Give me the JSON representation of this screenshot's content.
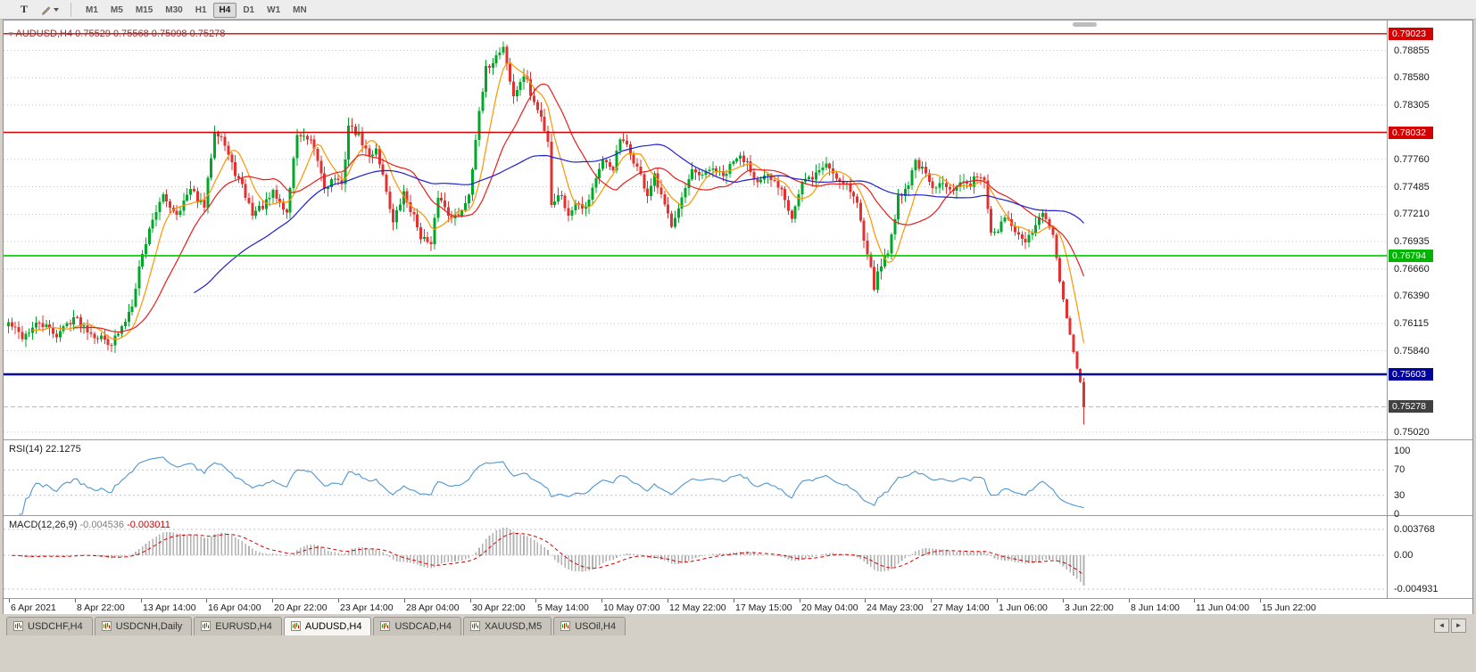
{
  "toolbar": {
    "text_tool_label": "T",
    "timeframes": [
      "M1",
      "M5",
      "M15",
      "M30",
      "H1",
      "H4",
      "D1",
      "W1",
      "MN"
    ],
    "active_timeframe": "H4"
  },
  "chart": {
    "header_marker": "▾",
    "symbol_header": "AUDUSD,H4 0.75529 0.75568 0.75098 0.75278"
  },
  "price_axis": {
    "ticks": [
      "0.78855",
      "0.78580",
      "0.78305",
      "0.77760",
      "0.77485",
      "0.77210",
      "0.76935",
      "0.76660",
      "0.76390",
      "0.76115",
      "0.75840",
      "0.75020"
    ],
    "tags": [
      {
        "value": "0.79023",
        "bg": "#d40000",
        "name": "resistance-tag-upper"
      },
      {
        "value": "0.78032",
        "bg": "#d40000",
        "name": "resistance-tag-lower"
      },
      {
        "value": "0.76794",
        "bg": "#00b400",
        "name": "support-tag-green"
      },
      {
        "value": "0.75603",
        "bg": "#0000a0",
        "name": "support-tag-blue"
      },
      {
        "value": "0.75278",
        "bg": "#404040",
        "name": "bid-price-tag"
      }
    ]
  },
  "rsi": {
    "label": "RSI(14) 22.1275",
    "scale": [
      "100",
      "70",
      "30",
      "0"
    ],
    "dotted_levels": [
      70,
      30
    ]
  },
  "macd": {
    "label": "MACD(12,26,9)",
    "values": [
      "-0.004536",
      "-0.003011"
    ],
    "axis": [
      "0.003768",
      "0.00",
      "-0.004931"
    ]
  },
  "time_axis": [
    "6 Apr 2021",
    "8 Apr 22:00",
    "13 Apr 14:00",
    "16 Apr 04:00",
    "20 Apr 22:00",
    "23 Apr 14:00",
    "28 Apr 04:00",
    "30 Apr 22:00",
    "5 May 14:00",
    "10 May 07:00",
    "12 May 22:00",
    "17 May 15:00",
    "20 May 04:00",
    "24 May 23:00",
    "27 May 14:00",
    "1 Jun 06:00",
    "3 Jun 22:00",
    "8 Jun 14:00",
    "11 Jun 04:00",
    "15 Jun 22:00"
  ],
  "tab_bar": {
    "tabs": [
      "USDCHF,H4",
      "USDCNH,Daily",
      "EURUSD,H4",
      "AUDUSD,H4",
      "USDCAD,H4",
      "XAUUSD,M5",
      "USOil,H4"
    ],
    "active_tab": "AUDUSD,H4",
    "nav_left": "◄",
    "nav_right": "►"
  },
  "colors": {
    "up": "#00a82a",
    "down": "#e33030",
    "ma_fast": "#ff9500",
    "ma_mid": "#e81e1e",
    "ma_slow": "#1f1fd0",
    "rsi_line": "#4e96d2",
    "macd_hist": "#b2b2b2",
    "macd_signal": "#d40000",
    "grid": "#c6c6c6"
  },
  "chart_data": {
    "type": "candlestick",
    "title": "AUDUSD,H4",
    "symbol": "AUDUSD",
    "timeframe": "H4",
    "last_candle": {
      "open": 0.75529,
      "high": 0.75568,
      "low": 0.75098,
      "close": 0.75278
    },
    "price_range": {
      "top": 0.79155,
      "bottom": 0.7495
    },
    "num_candles": 314,
    "horizontal_lines": [
      {
        "price": 0.79023,
        "color": "#d40000",
        "width": 1.4
      },
      {
        "price": 0.78032,
        "color": "#d40000",
        "width": 1.4
      },
      {
        "price": 0.76794,
        "color": "#00c800",
        "width": 1.6
      },
      {
        "price": 0.75603,
        "color": "#0000a0",
        "width": 2.4
      }
    ],
    "moving_averages": [
      {
        "period": 8,
        "color_key": "ma_fast"
      },
      {
        "period": 20,
        "color_key": "ma_mid"
      },
      {
        "period": 55,
        "color_key": "ma_slow"
      }
    ],
    "indicators": [
      {
        "name": "RSI",
        "period": 14,
        "last_value": 22.1275
      },
      {
        "name": "MACD",
        "fast": 12,
        "slow": 26,
        "signal": 9,
        "last_main": -0.004536,
        "last_signal": -0.003011
      }
    ],
    "close_path_anchors": [
      [
        0,
        0.7612
      ],
      [
        4,
        0.7598
      ],
      [
        9,
        0.7612
      ],
      [
        14,
        0.76
      ],
      [
        19,
        0.7618
      ],
      [
        25,
        0.76
      ],
      [
        30,
        0.7592
      ],
      [
        33,
        0.7606
      ],
      [
        36,
        0.7632
      ],
      [
        38,
        0.7668
      ],
      [
        42,
        0.7718
      ],
      [
        45,
        0.7738
      ],
      [
        49,
        0.7722
      ],
      [
        53,
        0.7745
      ],
      [
        57,
        0.7728
      ],
      [
        60,
        0.7806
      ],
      [
        62,
        0.78
      ],
      [
        65,
        0.777
      ],
      [
        68,
        0.7748
      ],
      [
        71,
        0.7722
      ],
      [
        75,
        0.7732
      ],
      [
        77,
        0.7742
      ],
      [
        81,
        0.7722
      ],
      [
        84,
        0.7802
      ],
      [
        88,
        0.7792
      ],
      [
        90,
        0.7775
      ],
      [
        92,
        0.7748
      ],
      [
        95,
        0.7758
      ],
      [
        97,
        0.7748
      ],
      [
        99,
        0.781
      ],
      [
        102,
        0.78
      ],
      [
        105,
        0.7778
      ],
      [
        107,
        0.7788
      ],
      [
        110,
        0.7745
      ],
      [
        112,
        0.7712
      ],
      [
        115,
        0.7742
      ],
      [
        118,
        0.7718
      ],
      [
        120,
        0.77
      ],
      [
        123,
        0.7688
      ],
      [
        125,
        0.774
      ],
      [
        128,
        0.7722
      ],
      [
        131,
        0.7718
      ],
      [
        134,
        0.7742
      ],
      [
        136,
        0.7798
      ],
      [
        139,
        0.7866
      ],
      [
        142,
        0.788
      ],
      [
        144,
        0.789
      ],
      [
        145,
        0.7872
      ],
      [
        147,
        0.7838
      ],
      [
        149,
        0.7855
      ],
      [
        151,
        0.7858
      ],
      [
        152,
        0.784
      ],
      [
        155,
        0.7818
      ],
      [
        157,
        0.7795
      ],
      [
        158,
        0.7732
      ],
      [
        161,
        0.7742
      ],
      [
        163,
        0.7718
      ],
      [
        165,
        0.7735
      ],
      [
        168,
        0.7728
      ],
      [
        171,
        0.7758
      ],
      [
        173,
        0.7772
      ],
      [
        176,
        0.7768
      ],
      [
        178,
        0.7796
      ],
      [
        180,
        0.7788
      ],
      [
        183,
        0.7768
      ],
      [
        186,
        0.774
      ],
      [
        188,
        0.7758
      ],
      [
        191,
        0.7728
      ],
      [
        193,
        0.7712
      ],
      [
        196,
        0.7738
      ],
      [
        199,
        0.7762
      ],
      [
        202,
        0.7758
      ],
      [
        205,
        0.7768
      ],
      [
        208,
        0.7758
      ],
      [
        212,
        0.7778
      ],
      [
        215,
        0.7775
      ],
      [
        218,
        0.7752
      ],
      [
        221,
        0.7758
      ],
      [
        225,
        0.7748
      ],
      [
        228,
        0.7718
      ],
      [
        231,
        0.7752
      ],
      [
        234,
        0.7758
      ],
      [
        238,
        0.7772
      ],
      [
        241,
        0.7758
      ],
      [
        244,
        0.7752
      ],
      [
        247,
        0.7732
      ],
      [
        249,
        0.7695
      ],
      [
        251,
        0.7672
      ],
      [
        252,
        0.7648
      ],
      [
        254,
        0.7672
      ],
      [
        256,
        0.7682
      ],
      [
        259,
        0.7738
      ],
      [
        262,
        0.7752
      ],
      [
        264,
        0.7775
      ],
      [
        267,
        0.776
      ],
      [
        269,
        0.7745
      ],
      [
        272,
        0.7752
      ],
      [
        275,
        0.7748
      ],
      [
        277,
        0.7755
      ],
      [
        280,
        0.7748
      ],
      [
        282,
        0.7762
      ],
      [
        284,
        0.7756
      ],
      [
        286,
        0.77
      ],
      [
        288,
        0.7706
      ],
      [
        291,
        0.7718
      ],
      [
        293,
        0.77
      ],
      [
        296,
        0.7692
      ],
      [
        299,
        0.771
      ],
      [
        301,
        0.7722
      ],
      [
        304,
        0.77
      ],
      [
        306,
        0.7652
      ],
      [
        309,
        0.76
      ],
      [
        311,
        0.7565
      ],
      [
        312,
        0.7553
      ],
      [
        313,
        0.75278
      ]
    ]
  }
}
